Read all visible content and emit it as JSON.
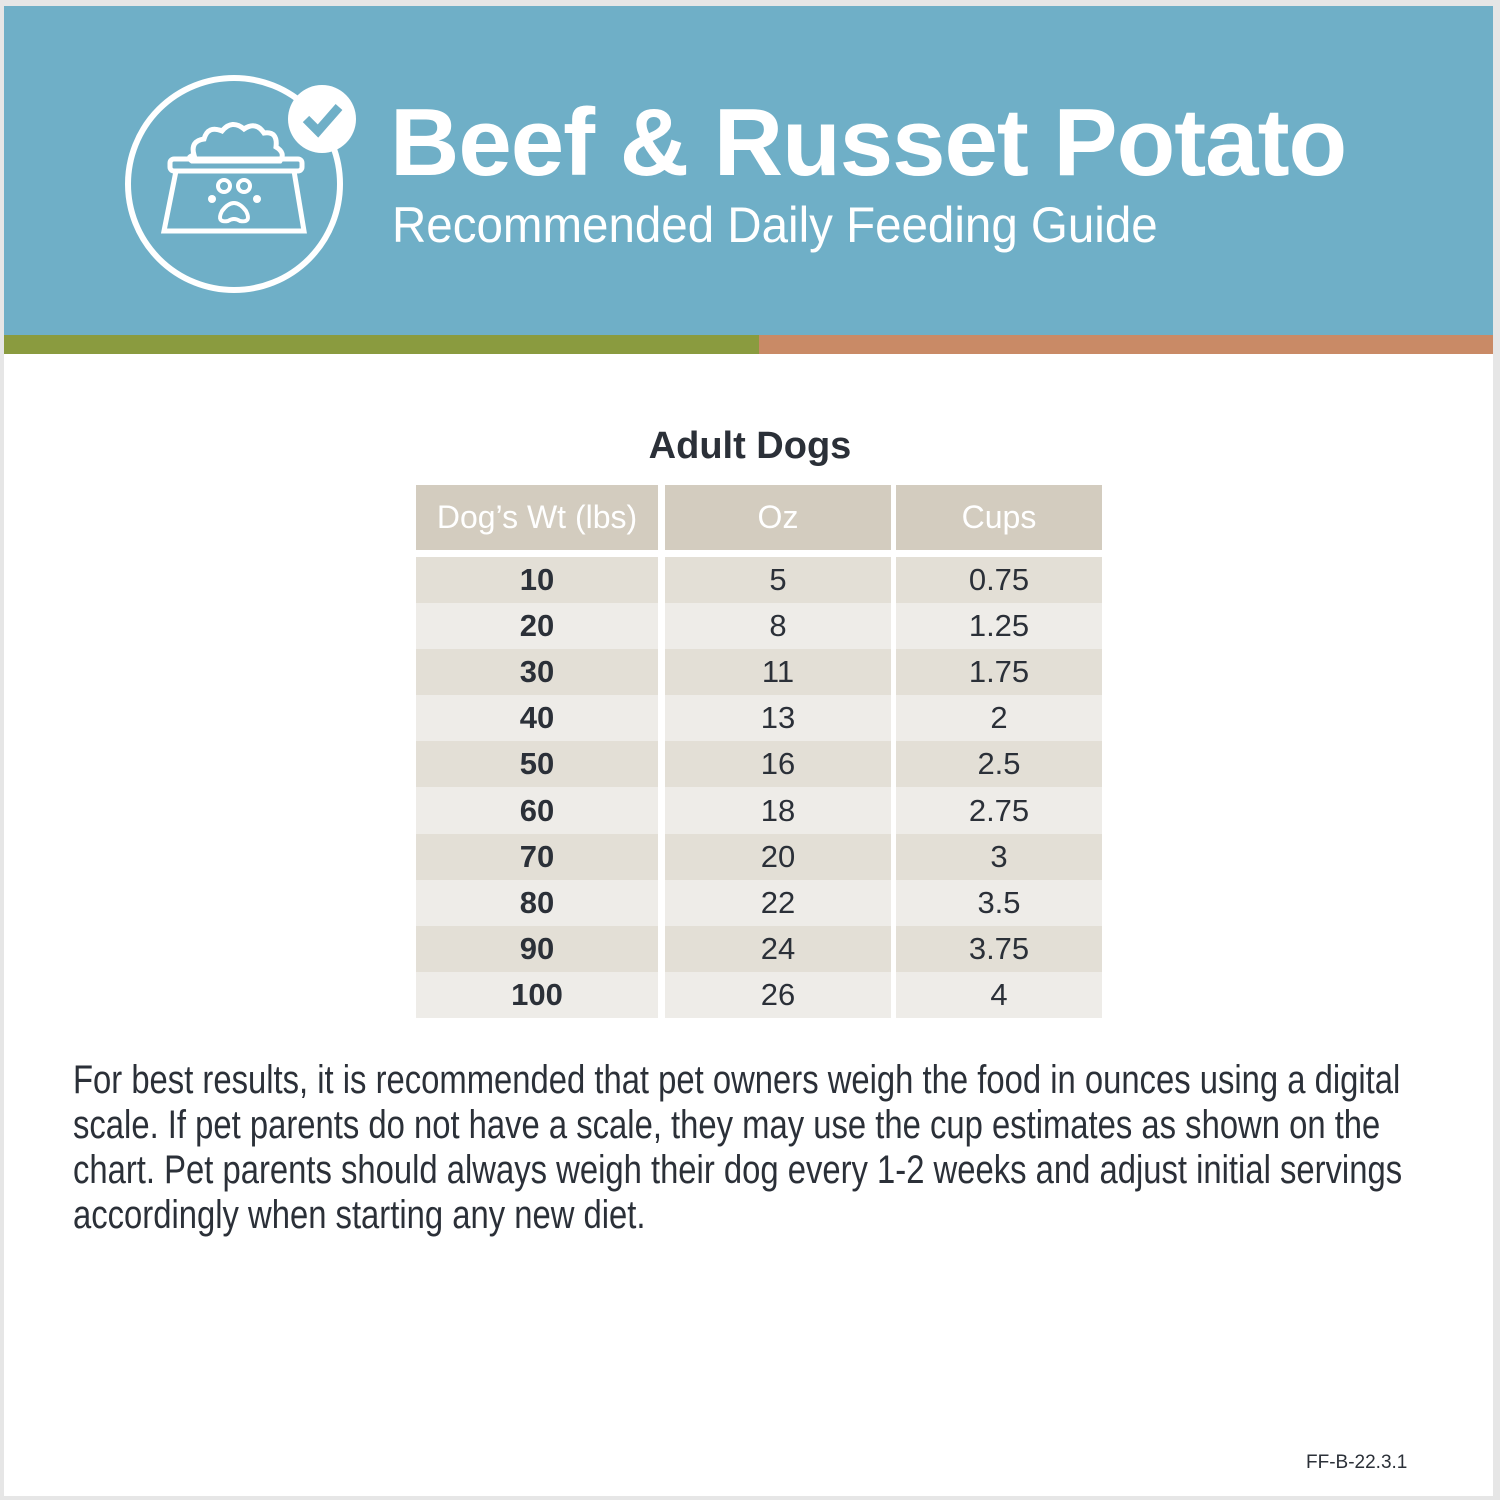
{
  "header": {
    "title": "Beef & Russet Potato",
    "subtitle": "Recommended Daily Feeding Guide",
    "logo_icon": "dog-food-bowl-check-icon",
    "colors": {
      "banner": "#6fafc7",
      "stripe_left": "#8a9b3f",
      "stripe_right": "#c98a66"
    }
  },
  "section_title": "Adult Dogs",
  "table": {
    "columns": [
      "Dog’s Wt (lbs)",
      "Oz",
      "Cups"
    ],
    "rows": [
      [
        "10",
        "5",
        "0.75"
      ],
      [
        "20",
        "8",
        "1.25"
      ],
      [
        "30",
        "11",
        "1.75"
      ],
      [
        "40",
        "13",
        "2"
      ],
      [
        "50",
        "16",
        "2.5"
      ],
      [
        "60",
        "18",
        "2.75"
      ],
      [
        "70",
        "20",
        "3"
      ],
      [
        "80",
        "22",
        "3.5"
      ],
      [
        "90",
        "24",
        "3.75"
      ],
      [
        "100",
        "26",
        "4"
      ]
    ]
  },
  "note": "For best results, it is recommended that pet owners weigh the food in ounces using a digital scale. If pet parents do not have a scale, they may use the cup estimates as shown on the chart. Pet parents should always weigh their dog every 1-2 weeks and adjust initial servings accordingly when starting any new diet.",
  "footer_code": "FF-B-22.3.1"
}
